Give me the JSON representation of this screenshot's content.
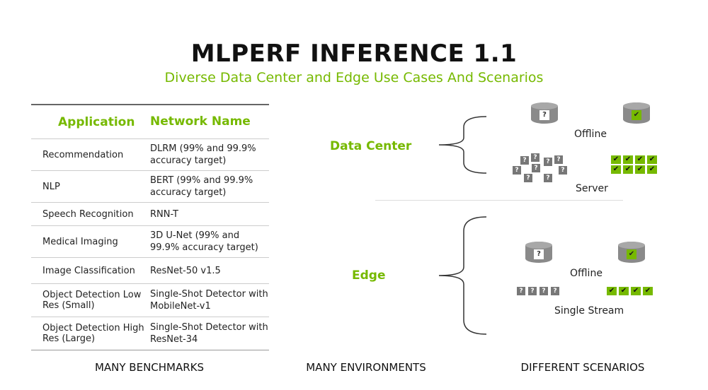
{
  "title": "MLPERF INFERENCE 1.1",
  "subtitle": "Diverse Data Center and Edge Use Cases And Scenarios",
  "colors": {
    "accent": "#76b900",
    "icon_gray": "#777777"
  },
  "table": {
    "headers": [
      "Application",
      "Network Name"
    ],
    "rows": [
      {
        "app": "Recommendation",
        "network": "DLRM (99% and 99.9% accuracy target)"
      },
      {
        "app": "NLP",
        "network": "BERT (99% and 99.9% accuracy target)"
      },
      {
        "app": "Speech Recognition",
        "network": "RNN-T"
      },
      {
        "app": "Medical Imaging",
        "network": "3D U-Net (99% and 99.9% accuracy target)"
      },
      {
        "app": "Image Classification",
        "network": "ResNet-50 v1.5"
      },
      {
        "app": "Object Detection Low Res (Small)",
        "network": "Single-Shot Detector with MobileNet-v1"
      },
      {
        "app": "Object Detection High Res (Large)",
        "network": "Single-Shot Detector with ResNet-34"
      }
    ]
  },
  "environments": {
    "data_center": "Data Center",
    "edge": "Edge"
  },
  "scenarios": {
    "data_center": {
      "offline": "Offline",
      "server": "Server"
    },
    "edge": {
      "offline": "Offline",
      "single_stream": "Single Stream"
    },
    "icons": {
      "query": "question-mark",
      "result": "check-mark",
      "dataset": "database-cylinder"
    }
  },
  "bottom": {
    "left": "MANY BENCHMARKS",
    "middle": "MANY ENVIRONMENTS",
    "right": "DIFFERENT SCENARIOS"
  }
}
